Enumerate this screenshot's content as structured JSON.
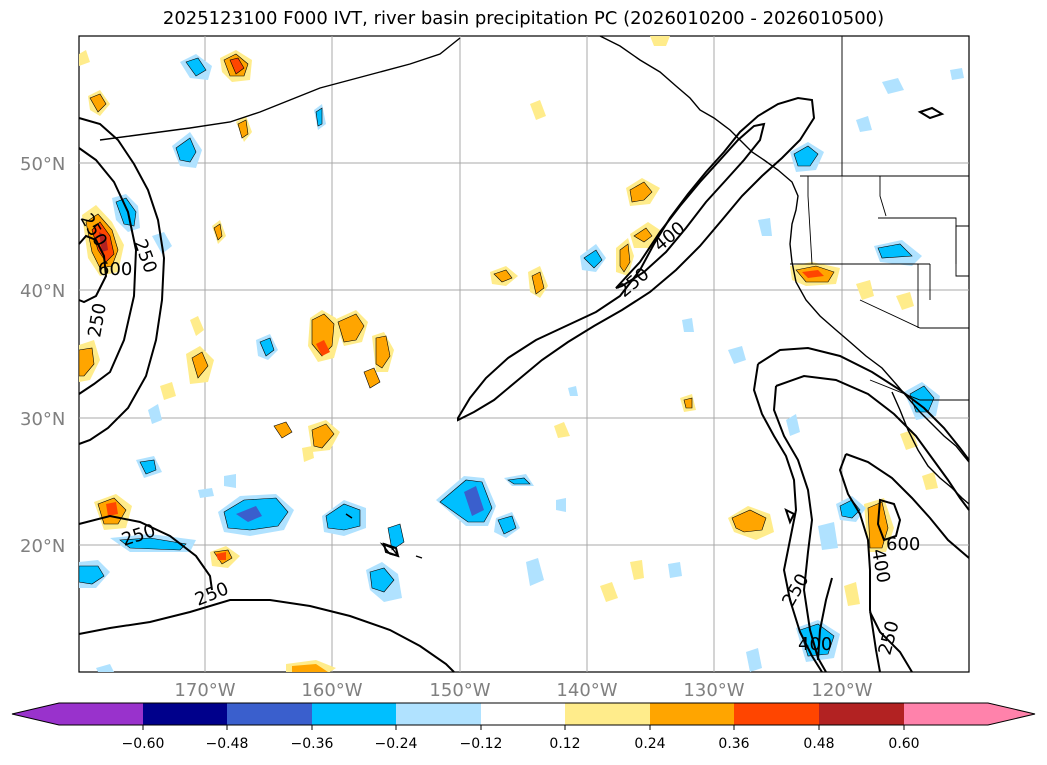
{
  "title": "2025123100 F000 IVT, river basin precipitation PC (2026010200 - 2026010500)",
  "lat_labels": [
    "50°N",
    "40°N",
    "30°N",
    "20°N"
  ],
  "lon_labels": [
    "170°W",
    "160°W",
    "150°W",
    "140°W",
    "130°W",
    "120°W"
  ],
  "colorbar": {
    "ticks": [
      "−0.60",
      "−0.48",
      "−0.36",
      "−0.24",
      "−0.12",
      "0.12",
      "0.24",
      "0.36",
      "0.48",
      "0.60"
    ],
    "colors": [
      "#9932cc",
      "#00008b",
      "#3a5fcd",
      "#00bfff",
      "#b0e2ff",
      "#ffffff",
      "#ffec8b",
      "#ffa500",
      "#ff4500",
      "#b22222",
      "#ff82ab"
    ]
  },
  "contour_labels": [
    "250",
    "600",
    "250",
    "250",
    "250",
    "400",
    "250",
    "600",
    "250",
    "400",
    "250",
    "400",
    "250"
  ]
}
